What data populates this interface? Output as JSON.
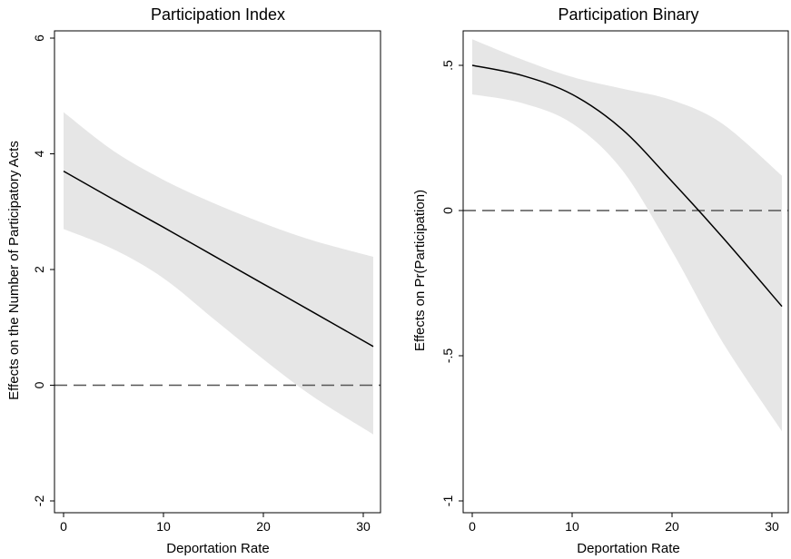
{
  "chart_data": [
    {
      "type": "line",
      "title": "Participation Index",
      "xlabel": "Deportation Rate",
      "ylabel": "Effects on the Number of Participatory Acts",
      "xlim": [
        0,
        31
      ],
      "ylim": [
        -2,
        6
      ],
      "x_ticks": [
        0,
        10,
        20,
        30
      ],
      "x_tick_labels": [
        "0",
        "10",
        "20",
        "30"
      ],
      "y_ticks": [
        -2,
        0,
        2,
        4,
        6
      ],
      "y_tick_labels": [
        "-2",
        "0",
        "2",
        "4",
        "6"
      ],
      "reference_line": 0,
      "grid": false,
      "x": [
        0,
        5,
        10,
        15,
        20,
        25,
        31
      ],
      "estimate": [
        3.7,
        3.21,
        2.73,
        2.24,
        1.75,
        1.26,
        0.67
      ],
      "ci_lower": [
        2.7,
        2.35,
        1.85,
        1.15,
        0.45,
        -0.2,
        -0.85
      ],
      "ci_upper": [
        4.72,
        4.05,
        3.55,
        3.15,
        2.8,
        2.5,
        2.22
      ]
    },
    {
      "type": "line",
      "title": "Participation Binary",
      "xlabel": "Deportation Rate",
      "ylabel": "Effects on Pr(Participation)",
      "xlim": [
        0,
        31
      ],
      "ylim": [
        -1,
        0.6
      ],
      "x_ticks": [
        0,
        10,
        20,
        30
      ],
      "x_tick_labels": [
        "0",
        "10",
        "20",
        "30"
      ],
      "y_ticks": [
        -1,
        -0.5,
        0,
        0.5
      ],
      "y_tick_labels": [
        "-1",
        "-.5",
        "0",
        ".5"
      ],
      "reference_line": 0,
      "grid": false,
      "x": [
        0,
        5,
        10,
        15,
        20,
        25,
        31
      ],
      "estimate": [
        0.5,
        0.465,
        0.4,
        0.28,
        0.1,
        -0.09,
        -0.33
      ],
      "ci_lower": [
        0.4,
        0.37,
        0.3,
        0.14,
        -0.14,
        -0.45,
        -0.76
      ],
      "ci_upper": [
        0.59,
        0.52,
        0.46,
        0.42,
        0.38,
        0.3,
        0.12
      ]
    }
  ]
}
